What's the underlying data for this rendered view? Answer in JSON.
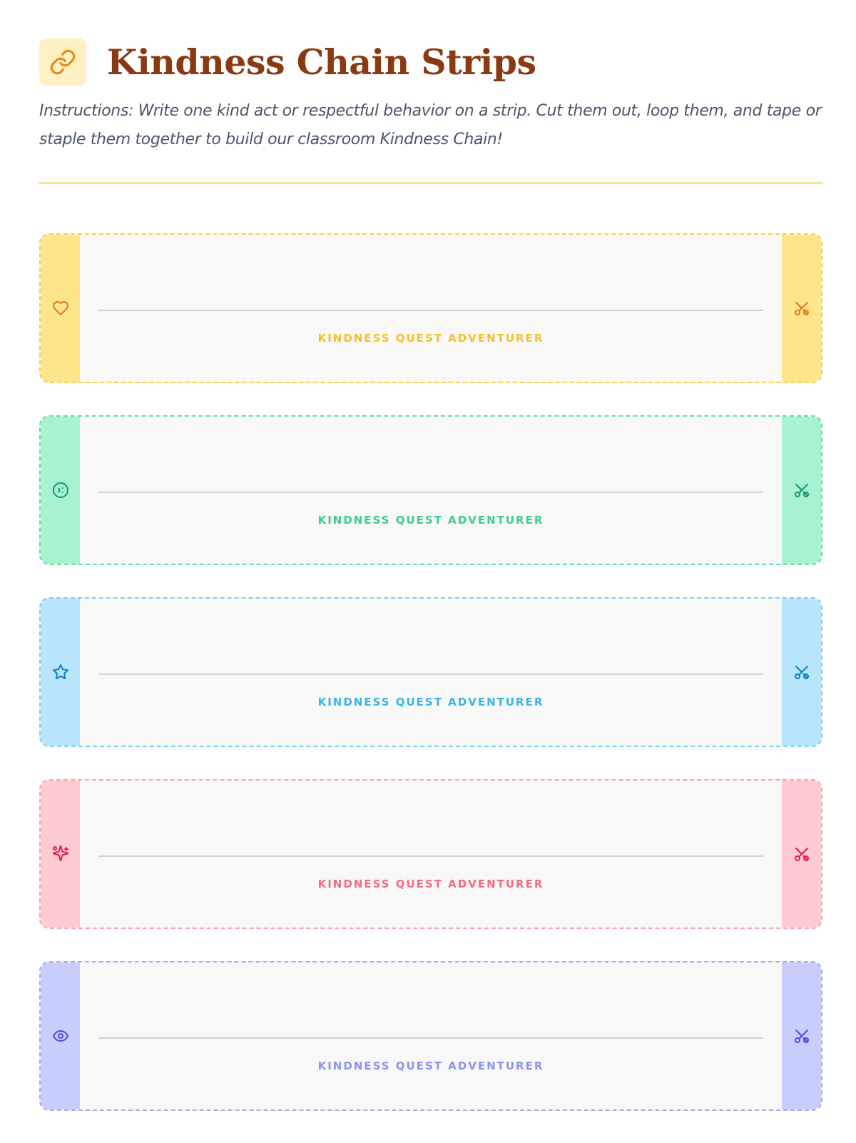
{
  "header": {
    "title": "Kindness Chain Strips",
    "icon": "link-icon",
    "instructions": "Instructions: Write one kind act or respectful behavior on a strip. Cut them out, loop them, and tape or staple them together to build our classroom Kindness Chain!"
  },
  "colors": {
    "title": "#8a3a13",
    "divider": "#fbe38f",
    "title_icon_bg": "#fdf0c3",
    "title_icon": "#e98b13"
  },
  "strips": [
    {
      "icon": "heart-icon",
      "cut_icon": "scissors-icon",
      "label": "KINDNESS QUEST ADVENTURER",
      "border": "#f9cf44",
      "tab_bg": "#fde58c",
      "icon_color": "#e07c0f",
      "label_color": "#f4c02e"
    },
    {
      "icon": "smile-icon",
      "cut_icon": "scissors-icon",
      "label": "KINDNESS QUEST ADVENTURER",
      "border": "#5fdfae",
      "tab_bg": "#a8f2d1",
      "icon_color": "#0f9a68",
      "label_color": "#3ec995"
    },
    {
      "icon": "star-icon",
      "cut_icon": "scissors-icon",
      "label": "KINDNESS QUEST ADVENTURER",
      "border": "#79d1f4",
      "tab_bg": "#b8e5fc",
      "icon_color": "#0f7fbf",
      "label_color": "#39b4ea"
    },
    {
      "icon": "sparkles-icon",
      "cut_icon": "scissors-icon",
      "label": "KINDNESS QUEST ADVENTURER",
      "border": "#f8a2b0",
      "tab_bg": "#fecbd3",
      "icon_color": "#e11d48",
      "label_color": "#f16c85"
    },
    {
      "icon": "eye-icon",
      "cut_icon": "scissors-icon",
      "label": "KINDNESS QUEST ADVENTURER",
      "border": "#a3acf5",
      "tab_bg": "#c7cefc",
      "icon_color": "#4f46e5",
      "label_color": "#8b93ef"
    }
  ]
}
